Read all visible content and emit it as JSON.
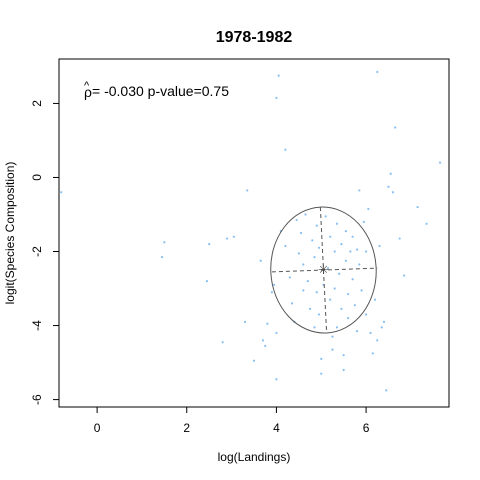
{
  "chart_data": {
    "type": "scatter",
    "title": "1978-1982",
    "xlabel": "log(Landings)",
    "ylabel": "logit(Species Composition)",
    "annotation": {
      "rho_symbol": "ρ",
      "rho_hat": "^",
      "text": " = -0.030 p-value=0.75"
    },
    "xlim": [
      -0.85,
      7.85
    ],
    "ylim": [
      -6.2,
      3.2
    ],
    "xticks": [
      0,
      2,
      4,
      6
    ],
    "yticks": [
      -6,
      -4,
      -2,
      0,
      2
    ],
    "grid": false,
    "legend": "none",
    "point_color": "#87bff0",
    "ellipse_color": "#555555",
    "center_color": "#444444",
    "ellipse": {
      "center": [
        5.05,
        -2.5
      ],
      "axis1": {
        "end_a": [
          4.98,
          -0.8
        ],
        "end_b": [
          5.12,
          -4.2
        ]
      },
      "axis2": {
        "end_a": [
          3.9,
          -2.55
        ],
        "end_b": [
          6.25,
          -2.45
        ]
      }
    },
    "points": [
      [
        -0.8,
        -0.4
      ],
      [
        1.5,
        -1.75
      ],
      [
        1.45,
        -2.15
      ],
      [
        2.5,
        -1.8
      ],
      [
        2.45,
        -2.8
      ],
      [
        2.9,
        -1.65
      ],
      [
        3.05,
        -1.6
      ],
      [
        2.8,
        -4.45
      ],
      [
        3.35,
        -0.35
      ],
      [
        3.3,
        -3.9
      ],
      [
        3.5,
        -4.95
      ],
      [
        3.65,
        -2.25
      ],
      [
        3.7,
        -4.4
      ],
      [
        3.75,
        -4.55
      ],
      [
        3.8,
        -3.95
      ],
      [
        3.9,
        -3.1
      ],
      [
        3.95,
        -2.9
      ],
      [
        4.0,
        -4.2
      ],
      [
        4.0,
        -5.45
      ],
      [
        4.05,
        2.75
      ],
      [
        4.0,
        2.15
      ],
      [
        4.2,
        0.75
      ],
      [
        4.1,
        -1.45
      ],
      [
        4.2,
        -1.85
      ],
      [
        4.3,
        -2.7
      ],
      [
        4.35,
        -3.4
      ],
      [
        4.4,
        -3.9
      ],
      [
        4.45,
        -1.15
      ],
      [
        4.5,
        -2.05
      ],
      [
        4.55,
        -1.5
      ],
      [
        4.6,
        -2.35
      ],
      [
        4.65,
        -1.0
      ],
      [
        4.7,
        -2.8
      ],
      [
        4.75,
        -3.55
      ],
      [
        4.8,
        -1.7
      ],
      [
        4.85,
        -2.15
      ],
      [
        4.85,
        -4.05
      ],
      [
        4.9,
        -3.1
      ],
      [
        4.9,
        -1.3
      ],
      [
        4.95,
        -1.9
      ],
      [
        4.95,
        -3.7
      ],
      [
        5.0,
        -4.9
      ],
      [
        5.0,
        -5.3
      ],
      [
        5.05,
        -2.9
      ],
      [
        5.1,
        -1.05
      ],
      [
        5.15,
        -2.45
      ],
      [
        5.2,
        -3.3
      ],
      [
        5.2,
        -1.6
      ],
      [
        5.25,
        -4.3
      ],
      [
        5.3,
        -2.0
      ],
      [
        5.3,
        -3.0
      ],
      [
        5.35,
        -1.25
      ],
      [
        5.35,
        -4.05
      ],
      [
        5.4,
        -2.6
      ],
      [
        5.45,
        -1.8
      ],
      [
        5.45,
        -3.55
      ],
      [
        5.5,
        -4.8
      ],
      [
        5.5,
        -5.2
      ],
      [
        5.55,
        -2.25
      ],
      [
        5.55,
        -1.45
      ],
      [
        5.6,
        -3.15
      ],
      [
        5.6,
        -3.8
      ],
      [
        5.65,
        -2.0
      ],
      [
        5.7,
        -1.6
      ],
      [
        5.7,
        -2.75
      ],
      [
        5.75,
        -3.45
      ],
      [
        5.8,
        -1.95
      ],
      [
        5.8,
        -4.15
      ],
      [
        5.85,
        -2.35
      ],
      [
        5.85,
        -0.35
      ],
      [
        5.9,
        -3.05
      ],
      [
        5.95,
        -1.2
      ],
      [
        6.0,
        -2.0
      ],
      [
        6.0,
        -3.7
      ],
      [
        6.05,
        -0.85
      ],
      [
        6.1,
        -4.2
      ],
      [
        6.15,
        -4.75
      ],
      [
        6.2,
        -3.3
      ],
      [
        6.25,
        -4.4
      ],
      [
        6.25,
        2.85
      ],
      [
        6.3,
        -1.85
      ],
      [
        6.35,
        -4.05
      ],
      [
        6.4,
        -3.9
      ],
      [
        6.45,
        -5.75
      ],
      [
        6.5,
        -0.25
      ],
      [
        6.55,
        0.1
      ],
      [
        6.6,
        -0.4
      ],
      [
        6.65,
        1.35
      ],
      [
        6.75,
        -1.65
      ],
      [
        6.85,
        -2.65
      ],
      [
        7.15,
        -0.8
      ],
      [
        7.35,
        -1.25
      ],
      [
        7.65,
        0.4
      ],
      [
        5.25,
        -4.65
      ],
      [
        4.6,
        -3.05
      ]
    ]
  }
}
